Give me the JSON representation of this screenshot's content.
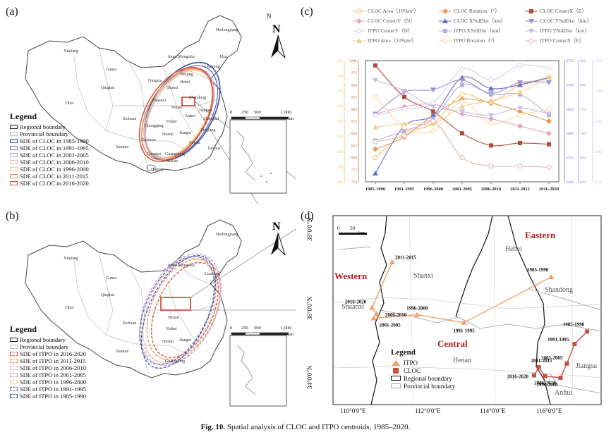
{
  "panels": {
    "a": {
      "label": "(a)"
    },
    "b": {
      "label": "(b)"
    },
    "c": {
      "label": "(c)"
    },
    "d": {
      "label": "(d)"
    }
  },
  "map_a": {
    "north": "N",
    "places": [
      "Heilongjiang",
      "Xinjiang",
      "Jilin",
      "Inner Mongolia",
      "Gansu",
      "Liaoning",
      "Hebei",
      "Beijing",
      "Ningxia",
      "Qinghai",
      "Shanxi",
      "Shandong",
      "Tibet",
      "Shaanxi",
      "Henan",
      "Jiangsu",
      "Anhui",
      "Sichuan",
      "Hubei",
      "Chongqing",
      "Shanghai",
      "Zhejiang",
      "Hunan",
      "Jiangxi",
      "Guizhou",
      "Fujian",
      "Yunnan",
      "Guangxi",
      "Guangdong",
      "Taiwan",
      "Hainan",
      "Macao"
    ],
    "scale": {
      "labels": [
        "0",
        "250",
        "500",
        "1,000"
      ],
      "unit": "km"
    },
    "legend": {
      "title": "Legend",
      "items": [
        {
          "label": "Regional boundary",
          "color": "#222222",
          "style": "solid"
        },
        {
          "label": "Provincial boundary",
          "color": "#bbbbbb",
          "style": "solid"
        },
        {
          "label": "SDE of CLOC in 1985-1990",
          "color": "#3a56a8",
          "style": "solid"
        },
        {
          "label": "SDE of CLOC in 1991-1995",
          "color": "#6a6fc4",
          "style": "solid"
        },
        {
          "label": "SDE of CLOC in 2001-2005",
          "color": "#b8a2d6",
          "style": "solid"
        },
        {
          "label": "SDE of CLOC in 2006-2010",
          "color": "#e6b8c8",
          "style": "solid"
        },
        {
          "label": "SDE of CLOC in 1996-2000",
          "color": "#f1c98a",
          "style": "solid"
        },
        {
          "label": "SDE of CLOC in 2011-2015",
          "color": "#ee8c5a",
          "style": "solid"
        },
        {
          "label": "SDE of CLOC in 2016-2020",
          "color": "#d9533c",
          "style": "solid"
        }
      ]
    }
  },
  "map_b": {
    "north": "N",
    "legend": {
      "title": "Legend",
      "items": [
        {
          "label": "Regional boundary",
          "color": "#222222",
          "style": "solid"
        },
        {
          "label": "Provincial boundary",
          "color": "#bbbbbb",
          "style": "solid"
        },
        {
          "label": "SDE of ITPO in 2016-2020",
          "color": "#d9533c",
          "style": "dashed"
        },
        {
          "label": "SDE of ITPO in 2011-2015",
          "color": "#ee8c5a",
          "style": "dashed"
        },
        {
          "label": "SDE of ITPO in 2006-2010",
          "color": "#e6b8c8",
          "style": "dashed"
        },
        {
          "label": "SDE of ITPO in 2001-2005",
          "color": "#b8a2d6",
          "style": "dashed"
        },
        {
          "label": "SDE of ITPO in 1996-2000",
          "color": "#f1c98a",
          "style": "dashed"
        },
        {
          "label": "SDE of ITPO in 1991-1995",
          "color": "#6a6fc4",
          "style": "dashed"
        },
        {
          "label": "SDE of ITPO in 1985-1990",
          "color": "#3a56a8",
          "style": "dashed"
        }
      ]
    }
  },
  "chart_data": {
    "type": "line",
    "categories": [
      "1985-1990",
      "1991-1995",
      "1996-2000",
      "2001-2005",
      "2006-2010",
      "2011-2015",
      "2016-2020"
    ],
    "legend": [
      {
        "name": "CLOC Area（10⁴km²）",
        "color": "#f7c26b",
        "marker": "circle"
      },
      {
        "name": "CLOC Rotation（°）",
        "color": "#e89a5a",
        "marker": "diamond"
      },
      {
        "name": "CLOC CenterX（E）",
        "color": "#b24a3c",
        "marker": "square"
      },
      {
        "name": "CLOC CenterY（N）",
        "color": "#e6a5c0",
        "marker": "diamond"
      },
      {
        "name": "CLOC XStdDist（km）",
        "color": "#6b6ec9",
        "marker": "triangle"
      },
      {
        "name": "CLOC YStdDist（km）",
        "color": "#9a8fd6",
        "marker": "triangle-down"
      },
      {
        "name": "ITPO CenterY（N）",
        "color": "#d6cfe9",
        "marker": "circle"
      },
      {
        "name": "ITPO XStdDist（km）",
        "color": "#b3b0e0",
        "marker": "square"
      },
      {
        "name": "ITPO YStdDist（km）",
        "color": "#c7c2ea",
        "marker": "triangle-down"
      },
      {
        "name": "ITPO Area（10⁴km²）",
        "color": "#f5cf8e",
        "marker": "triangle"
      },
      {
        "name": "ITPO Rotation（°）",
        "color": "#f6d9a5",
        "marker": "circle"
      },
      {
        "name": "ITPO CenterX（E）",
        "color": "#e0b6b0",
        "marker": "circle"
      }
    ],
    "y_left_outer": {
      "ticks": [
        "325",
        "320",
        "315",
        "310",
        "305",
        "300",
        "295",
        "290",
        "285"
      ],
      "color": "#f5b870"
    },
    "y_left_inner": {
      "ticks": [
        "1000",
        "975",
        "950",
        "925",
        "900",
        "875",
        "850",
        "825",
        "800",
        "775",
        "750"
      ],
      "color": "#d06a4a"
    },
    "y_right_inner": {
      "ticks": [
        "3750",
        "3700",
        "3650",
        "3600",
        "3550",
        "3500"
      ],
      "color": "#6b6ec9"
    },
    "y_right_outer": {
      "ticks": [
        "850",
        "800",
        "750",
        "700",
        "650",
        "600"
      ],
      "color": "#9a8fd6"
    },
    "y_right_far": {
      "ticks": [
        "1350",
        "1300",
        "1250",
        "1200",
        "1150"
      ],
      "color": "#c7c2ea"
    },
    "series": [
      {
        "name": "CLOC CenterX（E）",
        "values": [
          0.96,
          0.7,
          0.58,
          0.4,
          0.3,
          0.32,
          0.31
        ],
        "color": "#b24a3c",
        "marker": "square"
      },
      {
        "name": "CLOC Rotation（°）",
        "values": [
          0.27,
          0.37,
          0.55,
          0.68,
          0.65,
          0.58,
          0.5
        ],
        "color": "#e89a5a",
        "marker": "diamond"
      },
      {
        "name": "CLOC Area（10⁴km²）",
        "values": [
          0.2,
          0.4,
          0.48,
          0.72,
          0.66,
          0.8,
          0.86
        ],
        "color": "#f7c26b",
        "marker": "circle"
      },
      {
        "name": "CLOC CenterY（N）",
        "values": [
          0.56,
          0.62,
          0.64,
          0.56,
          0.52,
          0.46,
          0.4
        ],
        "color": "#e6a5c0",
        "marker": "diamond"
      },
      {
        "name": "CLOC XStdDist（km）",
        "values": [
          0.07,
          0.46,
          0.55,
          0.86,
          0.77,
          0.8,
          0.86
        ],
        "color": "#6b6ec9",
        "marker": "triangle"
      },
      {
        "name": "CLOC YStdDist（km）",
        "values": [
          0.56,
          0.74,
          0.76,
          0.84,
          0.73,
          0.82,
          0.82
        ],
        "color": "#9a8fd6",
        "marker": "triangle-down"
      },
      {
        "name": "ITPO CenterY（N）",
        "values": [
          0.55,
          0.6,
          0.65,
          0.93,
          0.84,
          0.96,
          0.94
        ],
        "color": "#d6cfe9",
        "marker": "circle"
      },
      {
        "name": "ITPO XStdDist（km）",
        "values": [
          0.34,
          0.42,
          0.52,
          0.8,
          0.72,
          0.72,
          0.55
        ],
        "color": "#b3b0e0",
        "marker": "square"
      },
      {
        "name": "ITPO YStdDist（km）",
        "values": [
          0.84,
          0.75,
          0.62,
          0.58,
          0.55,
          0.61,
          0.56
        ],
        "color": "#c7c2ea",
        "marker": "triangle-down"
      },
      {
        "name": "ITPO Area（10⁴km²）",
        "values": [
          0.45,
          0.48,
          0.48,
          0.62,
          0.67,
          0.74,
          0.86
        ],
        "color": "#f5cf8e",
        "marker": "triangle"
      },
      {
        "name": "ITPO Rotation（°）",
        "values": [
          0.7,
          0.45,
          0.42,
          0.66,
          0.48,
          0.55,
          0.6
        ],
        "color": "#f6d9a5",
        "marker": "circle"
      },
      {
        "name": "ITPO CenterX（E）",
        "values": [
          0.33,
          0.38,
          0.5,
          0.2,
          0.13,
          0.13,
          0.12
        ],
        "color": "#e0b6b0",
        "marker": "circle"
      }
    ]
  },
  "map_d": {
    "scale": {
      "labels": [
        "0",
        "50"
      ],
      "unit": "km"
    },
    "regions": {
      "western": "Western",
      "central": "Central",
      "eastern": "Eastern"
    },
    "provinces": [
      "Hebei",
      "Shanxi",
      "Shandong",
      "Shaanxi",
      "Henan",
      "Jiangsu",
      "Anhui"
    ],
    "lat_ticks": [
      "38°0'0\"N",
      "36°0'0\"N",
      "34°0'0\"N"
    ],
    "lon_ticks": [
      "110°0'0\"E",
      "112°0'0\"E",
      "114°0'0\"E",
      "116°0'0\"E"
    ],
    "itpo_points": [
      {
        "label": "1985-1990",
        "lon": 116.3,
        "lat": 36.88
      },
      {
        "label": "1991-1995",
        "lon": 113.5,
        "lat": 35.6
      },
      {
        "label": "1996-2000",
        "lon": 112.0,
        "lat": 35.82
      },
      {
        "label": "2001-2005",
        "lon": 110.6,
        "lat": 35.72
      },
      {
        "label": "2006-2010",
        "lon": 110.7,
        "lat": 35.85
      },
      {
        "label": "2011-2015",
        "lon": 111.2,
        "lat": 37.3
      },
      {
        "label": "2016-2020",
        "lon": 110.55,
        "lat": 36.02
      }
    ],
    "cloc_points": [
      {
        "label": "1985-1990",
        "lon": 117.45,
        "lat": 35.35
      },
      {
        "label": "1991-1995",
        "lon": 117.05,
        "lat": 35.0
      },
      {
        "label": "1996-2000",
        "lon": 116.6,
        "lat": 34.05
      },
      {
        "label": "2001-2005",
        "lon": 116.8,
        "lat": 34.45
      },
      {
        "label": "2006-2010",
        "lon": 116.1,
        "lat": 34.1
      },
      {
        "label": "2011-2015",
        "lon": 115.9,
        "lat": 34.35
      },
      {
        "label": "2016-2020",
        "lon": 115.75,
        "lat": 34.12
      }
    ],
    "legend": {
      "title": "Legend",
      "items": [
        {
          "label": "ITPO"
        },
        {
          "label": "CLOC"
        },
        {
          "label": "Regional boundary"
        },
        {
          "label": "Provincial boundary"
        }
      ]
    },
    "colors": {
      "itpo": "#f2a06a",
      "cloc": "#c8503e",
      "region_text": "#b01a1a"
    }
  },
  "caption": {
    "prefix": "Fig. 10.",
    "text": "Spatial analysis of CLOC and ITPO centroids, 1985–2020."
  }
}
